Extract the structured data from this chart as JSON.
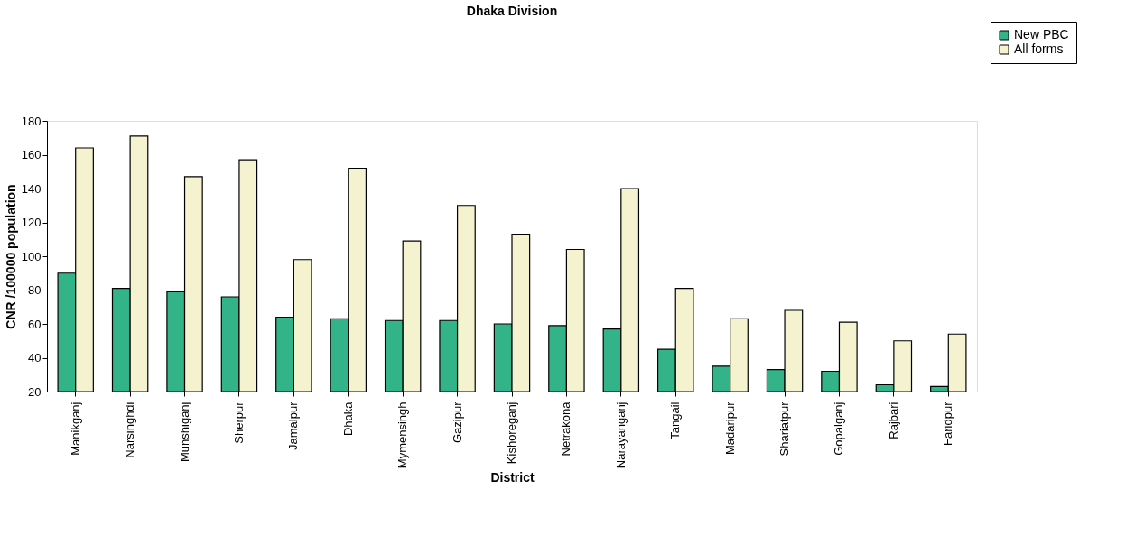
{
  "chart_data": {
    "type": "bar",
    "title": "Dhaka Division",
    "xlabel": "District",
    "ylabel": "CNR /100000 population",
    "categories": [
      "Manikganj",
      "Narsinghdi",
      "Munshiganj",
      "Sherpur",
      "Jamalpur",
      "Dhaka",
      "Mymensingh",
      "Gazipur",
      "Kishoreganj",
      "Netrakona",
      "Narayanganj",
      "Tangail",
      "Madaripur",
      "Shariatpur",
      "Gopalganj",
      "Rajbari",
      "Faridpur"
    ],
    "series": [
      {
        "name": "New PBC",
        "color": "#33b488",
        "values": [
          90,
          81,
          79,
          76,
          64,
          63,
          62,
          62,
          60,
          59,
          57,
          45,
          35,
          33,
          32,
          24,
          23
        ]
      },
      {
        "name": "All forms",
        "color": "#f5f2cf",
        "values": [
          164,
          171,
          147,
          157,
          98,
          152,
          109,
          130,
          113,
          104,
          140,
          81,
          63,
          68,
          61,
          50,
          54
        ]
      }
    ],
    "ylim": [
      20,
      180
    ],
    "yticks": [
      20,
      40,
      60,
      80,
      100,
      120,
      140,
      160,
      180
    ],
    "grid": false,
    "legend": "top right"
  }
}
